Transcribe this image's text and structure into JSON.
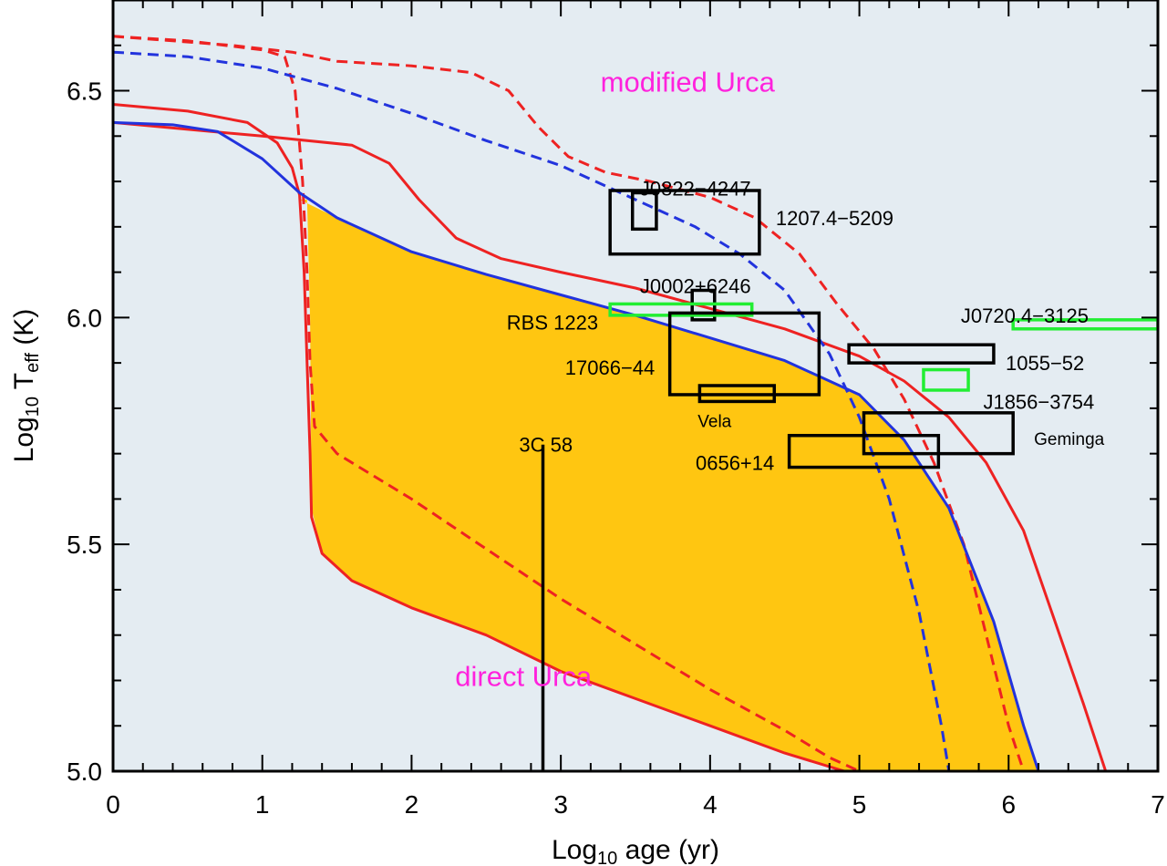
{
  "chart_data": {
    "type": "line",
    "title": "",
    "xlabel": {
      "prefix": "Log",
      "sub": "10",
      "suffix": " age (yr)"
    },
    "ylabel": {
      "prefix": "Log",
      "sub10": "10",
      "main": " T",
      "subeff": "eff",
      "suffix": " (K)"
    },
    "xlim": [
      0,
      7
    ],
    "ylim": [
      5.0,
      6.7
    ],
    "xticks": [
      0,
      1,
      2,
      3,
      4,
      5,
      6,
      7
    ],
    "yticks": [
      5.0,
      5.5,
      6.0,
      6.5
    ],
    "xtick_labels": [
      "0",
      "1",
      "2",
      "3",
      "4",
      "5",
      "6",
      "7"
    ],
    "ytick_labels": [
      "5.0",
      "5.5",
      "6.0",
      "6.5"
    ],
    "grid": false,
    "colors": {
      "background": "#e4ecf2",
      "fill": "#ffc611",
      "red": "#ee2222",
      "blue": "#2233dd",
      "green": "#22ee33",
      "black": "#000000",
      "magenta": "#ff22dd"
    },
    "region_labels": [
      {
        "text": "modified Urca",
        "x": 3.85,
        "y": 6.52
      },
      {
        "text": "direct Urca",
        "x": 2.75,
        "y": 5.21
      }
    ],
    "fill_region": {
      "name": "allowed band",
      "upper": [
        [
          1.25,
          6.26
        ],
        [
          1.5,
          6.22
        ],
        [
          2.0,
          6.145
        ],
        [
          2.5,
          6.095
        ],
        [
          3.0,
          6.05
        ],
        [
          3.5,
          6.005
        ],
        [
          4.0,
          5.955
        ],
        [
          4.5,
          5.905
        ],
        [
          5.0,
          5.83
        ],
        [
          5.3,
          5.73
        ],
        [
          5.6,
          5.58
        ],
        [
          5.9,
          5.33
        ],
        [
          6.1,
          5.1
        ],
        [
          6.2,
          5.0
        ]
      ],
      "lower": [
        [
          1.3,
          6.26
        ],
        [
          1.32,
          6.0
        ],
        [
          1.33,
          5.58
        ],
        [
          1.4,
          5.48
        ],
        [
          1.6,
          5.42
        ],
        [
          2.0,
          5.36
        ],
        [
          2.5,
          5.3
        ],
        [
          3.0,
          5.22
        ],
        [
          3.5,
          5.16
        ],
        [
          4.0,
          5.1
        ],
        [
          4.5,
          5.04
        ],
        [
          4.9,
          5.0
        ]
      ]
    },
    "series": [
      {
        "color": "red",
        "dash": false,
        "points": [
          [
            0,
            6.47
          ],
          [
            0.5,
            6.455
          ],
          [
            0.9,
            6.43
          ],
          [
            1.1,
            6.385
          ],
          [
            1.2,
            6.33
          ],
          [
            1.25,
            6.27
          ],
          [
            1.28,
            6.1
          ],
          [
            1.3,
            5.9
          ],
          [
            1.32,
            5.7
          ],
          [
            1.33,
            5.56
          ],
          [
            1.4,
            5.48
          ],
          [
            1.6,
            5.42
          ],
          [
            2.0,
            5.36
          ],
          [
            2.5,
            5.3
          ],
          [
            3.0,
            5.22
          ],
          [
            3.5,
            5.16
          ],
          [
            4.0,
            5.1
          ],
          [
            4.5,
            5.04
          ],
          [
            4.9,
            5.0
          ]
        ]
      },
      {
        "color": "red",
        "dash": false,
        "points": [
          [
            0,
            6.43
          ],
          [
            1.0,
            6.4
          ],
          [
            1.6,
            6.38
          ],
          [
            1.85,
            6.34
          ],
          [
            2.05,
            6.26
          ],
          [
            2.3,
            6.175
          ],
          [
            2.6,
            6.13
          ],
          [
            3.0,
            6.1
          ],
          [
            3.5,
            6.065
          ],
          [
            4.0,
            6.02
          ],
          [
            4.5,
            5.975
          ],
          [
            5.0,
            5.915
          ],
          [
            5.3,
            5.86
          ],
          [
            5.6,
            5.78
          ],
          [
            5.85,
            5.68
          ],
          [
            6.1,
            5.53
          ],
          [
            6.3,
            5.34
          ],
          [
            6.5,
            5.15
          ],
          [
            6.65,
            5.0
          ]
        ]
      },
      {
        "color": "red",
        "dash": true,
        "points": [
          [
            0,
            6.62
          ],
          [
            0.5,
            6.61
          ],
          [
            1.0,
            6.59
          ],
          [
            1.15,
            6.575
          ],
          [
            1.22,
            6.5
          ],
          [
            1.27,
            6.3
          ],
          [
            1.3,
            6.1
          ],
          [
            1.32,
            5.9
          ],
          [
            1.35,
            5.76
          ],
          [
            1.5,
            5.7
          ],
          [
            2.0,
            5.6
          ],
          [
            2.5,
            5.49
          ],
          [
            3.0,
            5.38
          ],
          [
            3.5,
            5.28
          ],
          [
            4.0,
            5.18
          ],
          [
            4.5,
            5.09
          ],
          [
            4.8,
            5.03
          ],
          [
            5.0,
            5.0
          ]
        ]
      },
      {
        "color": "red",
        "dash": true,
        "points": [
          [
            0,
            6.62
          ],
          [
            0.8,
            6.6
          ],
          [
            1.2,
            6.585
          ],
          [
            1.5,
            6.565
          ],
          [
            2.0,
            6.555
          ],
          [
            2.4,
            6.54
          ],
          [
            2.65,
            6.5
          ],
          [
            2.85,
            6.42
          ],
          [
            3.05,
            6.355
          ],
          [
            3.3,
            6.32
          ],
          [
            3.6,
            6.3
          ],
          [
            4.0,
            6.265
          ],
          [
            4.3,
            6.22
          ],
          [
            4.6,
            6.14
          ],
          [
            4.85,
            6.03
          ],
          [
            5.1,
            5.93
          ],
          [
            5.3,
            5.82
          ],
          [
            5.5,
            5.68
          ],
          [
            5.7,
            5.5
          ],
          [
            5.85,
            5.3
          ],
          [
            6.0,
            5.1
          ],
          [
            6.1,
            5.0
          ]
        ]
      },
      {
        "color": "blue",
        "dash": false,
        "points": [
          [
            0,
            6.43
          ],
          [
            0.4,
            6.425
          ],
          [
            0.7,
            6.41
          ],
          [
            1.0,
            6.35
          ],
          [
            1.25,
            6.275
          ],
          [
            1.5,
            6.22
          ],
          [
            2.0,
            6.145
          ],
          [
            2.5,
            6.095
          ],
          [
            3.0,
            6.05
          ],
          [
            3.5,
            6.005
          ],
          [
            4.0,
            5.955
          ],
          [
            4.5,
            5.905
          ],
          [
            5.0,
            5.83
          ],
          [
            5.3,
            5.73
          ],
          [
            5.6,
            5.58
          ],
          [
            5.9,
            5.33
          ],
          [
            6.1,
            5.1
          ],
          [
            6.2,
            5.0
          ]
        ]
      },
      {
        "color": "blue",
        "dash": true,
        "points": [
          [
            0,
            6.585
          ],
          [
            0.5,
            6.575
          ],
          [
            1.0,
            6.55
          ],
          [
            1.5,
            6.505
          ],
          [
            2.0,
            6.45
          ],
          [
            2.5,
            6.39
          ],
          [
            3.0,
            6.335
          ],
          [
            3.5,
            6.26
          ],
          [
            3.9,
            6.2
          ],
          [
            4.2,
            6.14
          ],
          [
            4.5,
            6.06
          ],
          [
            4.8,
            5.92
          ],
          [
            5.0,
            5.78
          ],
          [
            5.2,
            5.6
          ],
          [
            5.4,
            5.35
          ],
          [
            5.55,
            5.1
          ],
          [
            5.6,
            5.0
          ]
        ]
      }
    ],
    "observations": [
      {
        "label": "J0822−4247",
        "color": "black",
        "box": [
          3.48,
          3.64,
          6.195,
          6.275
        ],
        "label_x": 3.53,
        "label_y": 6.285,
        "anchor": "start",
        "size": "normal"
      },
      {
        "label": "1207.4−5209",
        "color": "black",
        "box": [
          3.33,
          4.33,
          6.14,
          6.28
        ],
        "label_x": 4.44,
        "label_y": 6.22,
        "anchor": "start",
        "size": "normal"
      },
      {
        "label": "J0002+6246",
        "color": "black",
        "box": [
          3.88,
          4.03,
          5.995,
          6.06
        ],
        "label_x": 3.53,
        "label_y": 6.07,
        "anchor": "start",
        "size": "normal"
      },
      {
        "label": "RBS 1223",
        "color": "green",
        "box": [
          3.33,
          4.28,
          6.005,
          6.03
        ],
        "label_x": 3.25,
        "label_y": 5.99,
        "anchor": "end",
        "size": "normal"
      },
      {
        "label": "17066−44",
        "color": "black",
        "box": [
          3.73,
          4.73,
          5.83,
          6.01
        ],
        "label_x": 3.63,
        "label_y": 5.89,
        "anchor": "end",
        "size": "normal"
      },
      {
        "label": "Vela",
        "color": "black",
        "box": [
          3.93,
          4.43,
          5.815,
          5.85
        ],
        "label_x": 4.03,
        "label_y": 5.775,
        "anchor": "middle",
        "size": "small"
      },
      {
        "label": "J0720.4−3125",
        "color": "green",
        "box": [
          6.03,
          7.0,
          5.975,
          5.995
        ],
        "label_x": 5.68,
        "label_y": 6.005,
        "anchor": "start",
        "size": "normal"
      },
      {
        "label": "1055−52",
        "color": "black",
        "box": [
          4.93,
          5.9,
          5.9,
          5.94
        ],
        "label_x": 5.98,
        "label_y": 5.9,
        "anchor": "start",
        "size": "normal"
      },
      {
        "label": "J1856−3754",
        "color": "green",
        "box": [
          5.43,
          5.73,
          5.84,
          5.885
        ],
        "label_x": 5.83,
        "label_y": 5.815,
        "anchor": "start",
        "size": "normal"
      },
      {
        "label": "Geminga",
        "color": "black",
        "box": [
          5.03,
          6.03,
          5.7,
          5.79
        ],
        "label_x": 6.17,
        "label_y": 5.735,
        "anchor": "start",
        "size": "small"
      },
      {
        "label": "0656+14",
        "color": "black",
        "box": [
          4.53,
          5.53,
          5.67,
          5.74
        ],
        "label_x": 4.43,
        "label_y": 5.68,
        "anchor": "end",
        "size": "normal"
      }
    ],
    "vertical_line": {
      "label": "3C 58",
      "x": 2.88,
      "y_top": 5.72,
      "label_x": 2.9,
      "label_y": 5.72
    }
  }
}
